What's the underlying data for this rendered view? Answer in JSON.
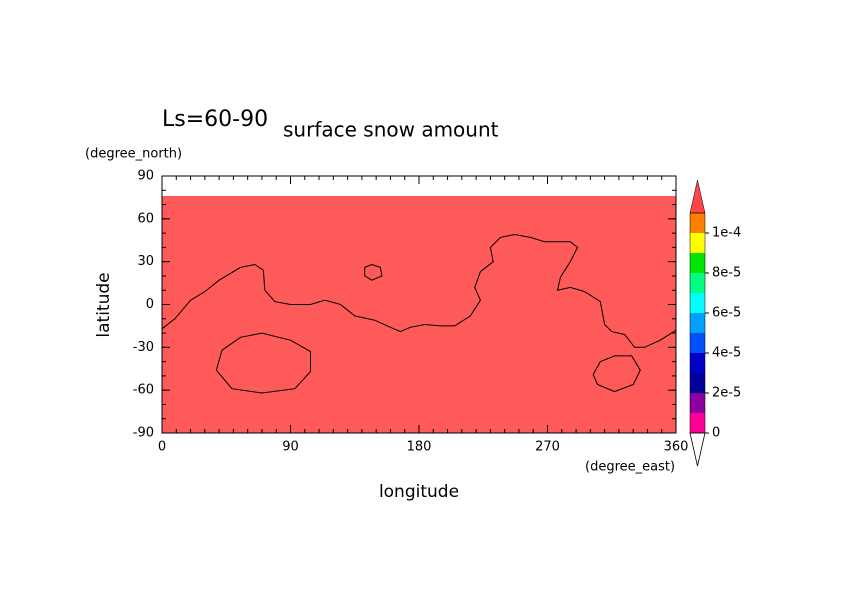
{
  "chart_data": {
    "type": "contour",
    "header": "Ls=60-90",
    "title": "surface snow amount",
    "xlabel": "longitude",
    "xunit": "(degree_east)",
    "ylabel": "latitude",
    "yunit": "(degree_north)",
    "xlim": [
      0,
      360
    ],
    "ylim": [
      -90,
      90
    ],
    "xticks": [
      0,
      90,
      180,
      270,
      360
    ],
    "yticks": [
      -90,
      -60,
      -30,
      0,
      30,
      60,
      90
    ],
    "minor_tick_step": 10,
    "shaded_lat": [
      -90,
      76
    ],
    "shade_color": "#ff5a5a",
    "contour_color": "#000000",
    "contours": [
      {
        "x": [
          0,
          9,
          20,
          30,
          40,
          55,
          65,
          71,
          72,
          79,
          90,
          104,
          114,
          125,
          135,
          149,
          160,
          167,
          174,
          184,
          195,
          205,
          216,
          223,
          219,
          223,
          232,
          230,
          237,
          247,
          258,
          268,
          286,
          291,
          286,
          279,
          277,
          286,
          296,
          307,
          310,
          315,
          324,
          331,
          338,
          349,
          360
        ],
        "y": [
          -17,
          -10,
          3,
          9,
          17,
          26,
          28,
          24,
          10,
          2,
          0,
          0,
          3,
          0,
          -8,
          -11,
          -16,
          -19,
          -16,
          -14,
          -15,
          -15,
          -8,
          3,
          12,
          23,
          30,
          40,
          47,
          49,
          47,
          44,
          44,
          40,
          30,
          19,
          10,
          12,
          9,
          2,
          -14,
          -19,
          -21,
          -30,
          -30,
          -25,
          -18
        ]
      },
      {
        "x": [
          142,
          147,
          153,
          154,
          147,
          142,
          142
        ],
        "y": [
          26,
          28,
          26,
          20,
          17,
          20,
          26
        ]
      },
      {
        "x": [
          38,
          42,
          55,
          70,
          90,
          104,
          104,
          93,
          70,
          49,
          38
        ],
        "y": [
          -46,
          -32,
          -23,
          -20,
          -25,
          -33,
          -47,
          -59,
          -62,
          -59,
          -46
        ]
      },
      {
        "x": [
          302,
          307,
          317,
          329,
          335,
          330,
          317,
          305,
          302
        ],
        "y": [
          -49,
          -40,
          -36,
          -36,
          -46,
          -56,
          -61,
          -56,
          -49
        ]
      }
    ],
    "colorbar": {
      "levels": [
        0,
        1e-05,
        2e-05,
        3e-05,
        4e-05,
        5e-05,
        6e-05,
        7e-05,
        8e-05,
        9e-05,
        0.0001,
        0.00011
      ],
      "colors": [
        "#ff0096",
        "#8c00a0",
        "#000096",
        "#0000c8",
        "#0050ff",
        "#00a0ff",
        "#00ffff",
        "#00ff80",
        "#00e600",
        "#ffff00",
        "#ff8000"
      ],
      "over_color": "#ff4646",
      "under_color": "#ffffff",
      "ticks": [
        0,
        {
          "value": 2e-05,
          "label": "2e-5"
        },
        {
          "value": 4e-05,
          "label": "4e-5"
        },
        {
          "value": 6e-05,
          "label": "6e-5"
        },
        {
          "value": 8e-05,
          "label": "8e-5"
        },
        {
          "value": 0.0001,
          "label": "1e-4"
        }
      ]
    }
  }
}
